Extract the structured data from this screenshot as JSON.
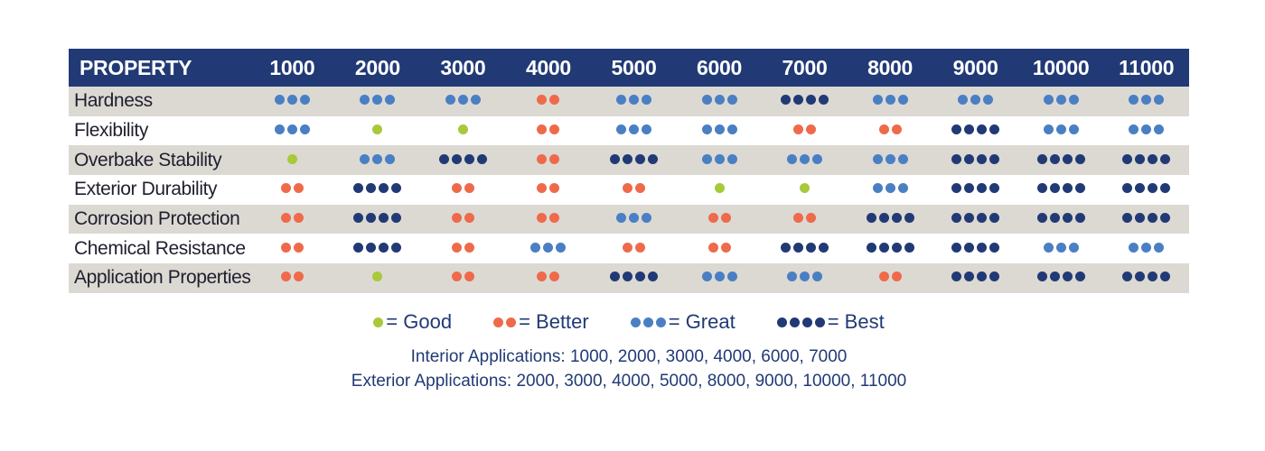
{
  "chart_data": {
    "type": "table",
    "header_label": "PROPERTY",
    "columns": [
      "1000",
      "2000",
      "3000",
      "4000",
      "5000",
      "6000",
      "7000",
      "8000",
      "9000",
      "10000",
      "11000"
    ],
    "rows": [
      {
        "property": "Hardness",
        "ratings": [
          3,
          3,
          3,
          2,
          3,
          3,
          4,
          3,
          3,
          3,
          3
        ]
      },
      {
        "property": "Flexibility",
        "ratings": [
          3,
          1,
          1,
          2,
          3,
          3,
          2,
          2,
          4,
          3,
          3
        ]
      },
      {
        "property": "Overbake Stability",
        "ratings": [
          1,
          3,
          4,
          2,
          4,
          3,
          3,
          3,
          4,
          4,
          4
        ]
      },
      {
        "property": "Exterior Durability",
        "ratings": [
          2,
          4,
          2,
          2,
          2,
          1,
          1,
          3,
          4,
          4,
          4
        ]
      },
      {
        "property": "Corrosion Protection",
        "ratings": [
          2,
          4,
          2,
          2,
          3,
          2,
          2,
          4,
          4,
          4,
          4
        ]
      },
      {
        "property": "Chemical Resistance",
        "ratings": [
          2,
          4,
          2,
          3,
          2,
          2,
          4,
          4,
          4,
          3,
          3
        ]
      },
      {
        "property": "Application Properties",
        "ratings": [
          2,
          1,
          2,
          2,
          4,
          3,
          3,
          2,
          4,
          4,
          4
        ]
      }
    ],
    "rating_colors": {
      "1": "#a8c93a",
      "2": "#ef6a4a",
      "3": "#4a7fc4",
      "4": "#213a75"
    },
    "legend": [
      {
        "rating": 1,
        "label": "= Good"
      },
      {
        "rating": 2,
        "label": "= Better"
      },
      {
        "rating": 3,
        "label": "= Great"
      },
      {
        "rating": 4,
        "label": "= Best"
      }
    ]
  },
  "notes": {
    "interior": "Interior Applications: 1000, 2000, 3000, 4000, 6000, 7000",
    "exterior": "Exterior Applications: 2000, 3000, 4000, 5000, 8000, 9000, 10000, 11000"
  }
}
